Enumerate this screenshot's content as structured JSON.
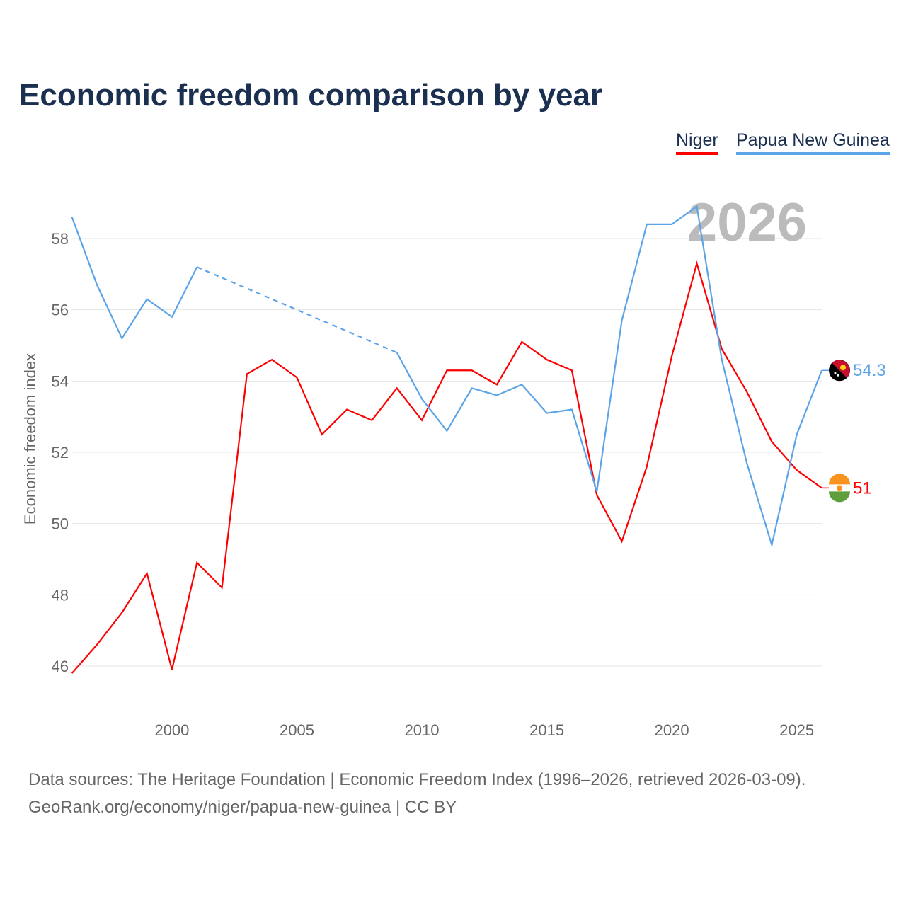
{
  "chart_data": {
    "type": "line",
    "title": "Economic freedom comparison by year",
    "xlabel": "",
    "ylabel": "Economic freedom index",
    "year_watermark": "2026",
    "x": [
      1996,
      1997,
      1998,
      1999,
      2000,
      2001,
      2002,
      2003,
      2004,
      2005,
      2006,
      2007,
      2008,
      2009,
      2010,
      2011,
      2012,
      2013,
      2014,
      2015,
      2016,
      2017,
      2018,
      2019,
      2020,
      2021,
      2022,
      2023,
      2024,
      2025,
      2026
    ],
    "xticks": [
      "2000",
      "2005",
      "2010",
      "2015",
      "2020",
      "2025"
    ],
    "yticks": [
      "46",
      "48",
      "50",
      "52",
      "54",
      "56",
      "58"
    ],
    "ylim": [
      46,
      58
    ],
    "xlim": [
      1996,
      2026
    ],
    "grid": true,
    "legend_placement": "top-right",
    "series": [
      {
        "name": "Niger",
        "color": "#ff0000",
        "end_label": "51",
        "values": [
          45.8,
          46.6,
          47.5,
          48.6,
          45.9,
          48.9,
          48.2,
          54.2,
          54.6,
          54.1,
          52.5,
          53.2,
          52.9,
          53.8,
          52.9,
          54.3,
          54.3,
          53.9,
          55.1,
          54.6,
          54.3,
          50.8,
          49.5,
          51.6,
          54.7,
          57.3,
          54.9,
          53.7,
          52.3,
          51.5,
          51.0
        ]
      },
      {
        "name": "Papua New Guinea",
        "color": "#5ca4e8",
        "end_label": "54.3",
        "values": [
          58.6,
          56.7,
          55.2,
          56.3,
          55.8,
          57.2,
          null,
          null,
          null,
          null,
          null,
          null,
          null,
          54.8,
          53.5,
          52.6,
          53.8,
          53.6,
          53.9,
          53.1,
          53.2,
          50.9,
          55.7,
          58.4,
          58.4,
          58.9,
          54.6,
          51.7,
          49.4,
          52.5,
          54.3
        ]
      }
    ]
  },
  "footer": {
    "line1": "Data sources: The Heritage Foundation | Economic Freedom Index (1996–2026, retrieved 2026-03-09).",
    "line2": "GeoRank.org/economy/niger/papua-new-guinea | CC BY"
  }
}
